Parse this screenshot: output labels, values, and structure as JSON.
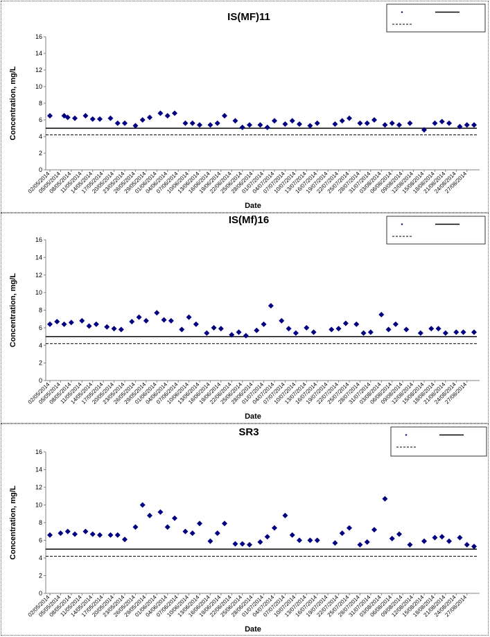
{
  "chart_data": [
    {
      "type": "scatter",
      "title": "IS(MF)11",
      "xlabel": "Date",
      "ylabel": "Concentration, mg/L",
      "ylim": [
        0,
        16
      ],
      "yticks": [
        0,
        2,
        4,
        6,
        8,
        10,
        12,
        14,
        16
      ],
      "x_ticks": [
        "02/05/2014",
        "05/05/2014",
        "08/05/2014",
        "11/05/2014",
        "14/05/2014",
        "17/05/2014",
        "20/05/2014",
        "23/05/2014",
        "26/05/2014",
        "29/05/2014",
        "01/06/2014",
        "04/06/2014",
        "07/06/2014",
        "10/06/2014",
        "13/06/2014",
        "16/06/2014",
        "19/06/2014",
        "22/06/2014",
        "25/06/2014",
        "28/06/2014",
        "01/07/2014",
        "04/07/2014",
        "07/07/2014",
        "10/07/2014",
        "13/07/2014",
        "16/07/2014",
        "19/07/2014",
        "22/07/2014",
        "25/07/2014",
        "28/07/2014",
        "31/07/2014",
        "03/08/2014",
        "06/08/2014",
        "09/08/2014",
        "12/08/2014",
        "15/08/2014",
        "18/08/2014",
        "21/08/2014",
        "24/08/2014",
        "27/08/2014"
      ],
      "x_tick_days": [
        0,
        3,
        6,
        9,
        12,
        15,
        18,
        21,
        24,
        27,
        30,
        33,
        36,
        39,
        42,
        45,
        48,
        51,
        54,
        57,
        60,
        63,
        66,
        69,
        72,
        75,
        78,
        81,
        84,
        87,
        90,
        93,
        96,
        99,
        102,
        105,
        108,
        111,
        114,
        117
      ],
      "x_range_days": [
        0,
        119
      ],
      "legend_position": "top-right",
      "reference_lines": [
        {
          "style": "solid",
          "value": 5.0
        },
        {
          "style": "dashed",
          "value": 4.2
        }
      ],
      "points": [
        {
          "day": 0,
          "y": 6.5
        },
        {
          "day": 4,
          "y": 6.5
        },
        {
          "day": 5,
          "y": 6.3
        },
        {
          "day": 7,
          "y": 6.2
        },
        {
          "day": 10,
          "y": 6.5
        },
        {
          "day": 12,
          "y": 6.1
        },
        {
          "day": 14,
          "y": 6.1
        },
        {
          "day": 17,
          "y": 6.2
        },
        {
          "day": 19,
          "y": 5.6
        },
        {
          "day": 21,
          "y": 5.6
        },
        {
          "day": 24,
          "y": 5.3
        },
        {
          "day": 26,
          "y": 6.0
        },
        {
          "day": 28,
          "y": 6.3
        },
        {
          "day": 31,
          "y": 6.8
        },
        {
          "day": 33,
          "y": 6.5
        },
        {
          "day": 35,
          "y": 6.8
        },
        {
          "day": 38,
          "y": 5.6
        },
        {
          "day": 40,
          "y": 5.6
        },
        {
          "day": 42,
          "y": 5.4
        },
        {
          "day": 45,
          "y": 5.4
        },
        {
          "day": 47,
          "y": 5.6
        },
        {
          "day": 49,
          "y": 6.5
        },
        {
          "day": 52,
          "y": 5.9
        },
        {
          "day": 54,
          "y": 5.1
        },
        {
          "day": 56,
          "y": 5.4
        },
        {
          "day": 59,
          "y": 5.4
        },
        {
          "day": 61,
          "y": 5.1
        },
        {
          "day": 63,
          "y": 5.9
        },
        {
          "day": 66,
          "y": 5.5
        },
        {
          "day": 68,
          "y": 5.9
        },
        {
          "day": 70,
          "y": 5.5
        },
        {
          "day": 73,
          "y": 5.3
        },
        {
          "day": 75,
          "y": 5.6
        },
        {
          "day": 80,
          "y": 5.5
        },
        {
          "day": 82,
          "y": 5.9
        },
        {
          "day": 84,
          "y": 6.2
        },
        {
          "day": 87,
          "y": 5.6
        },
        {
          "day": 89,
          "y": 5.6
        },
        {
          "day": 91,
          "y": 6.0
        },
        {
          "day": 94,
          "y": 5.4
        },
        {
          "day": 96,
          "y": 5.6
        },
        {
          "day": 98,
          "y": 5.4
        },
        {
          "day": 101,
          "y": 5.6
        },
        {
          "day": 105,
          "y": 4.8
        },
        {
          "day": 108,
          "y": 5.6
        },
        {
          "day": 110,
          "y": 5.8
        },
        {
          "day": 112,
          "y": 5.6
        },
        {
          "day": 115,
          "y": 5.2
        },
        {
          "day": 117,
          "y": 5.4
        },
        {
          "day": 119,
          "y": 5.4
        }
      ]
    },
    {
      "type": "scatter",
      "title": "IS(Mf)16",
      "xlabel": "Date",
      "ylabel": "Concentration, mg/L",
      "ylim": [
        0,
        16
      ],
      "yticks": [
        0,
        2,
        4,
        6,
        8,
        10,
        12,
        14,
        16
      ],
      "x_ticks": [
        "02/05/2014",
        "05/05/2014",
        "08/05/2014",
        "11/05/2014",
        "14/05/2014",
        "17/05/2014",
        "20/05/2014",
        "23/05/2014",
        "26/05/2014",
        "29/05/2014",
        "01/06/2014",
        "04/06/2014",
        "07/06/2014",
        "10/06/2014",
        "13/06/2014",
        "16/06/2014",
        "19/06/2014",
        "22/06/2014",
        "25/06/2014",
        "28/06/2014",
        "01/07/2014",
        "04/07/2014",
        "07/07/2014",
        "10/07/2014",
        "13/07/2014",
        "16/07/2014",
        "19/07/2014",
        "22/07/2014",
        "25/07/2014",
        "28/07/2014",
        "31/07/2014",
        "03/08/2014",
        "06/08/2014",
        "09/08/2014",
        "12/08/2014",
        "15/08/2014",
        "18/08/2014",
        "21/08/2014",
        "24/08/2014",
        "27/08/2014"
      ],
      "x_tick_days": [
        0,
        3,
        6,
        9,
        12,
        15,
        18,
        21,
        24,
        27,
        30,
        33,
        36,
        39,
        42,
        45,
        48,
        51,
        54,
        57,
        60,
        63,
        66,
        69,
        72,
        75,
        78,
        81,
        84,
        87,
        90,
        93,
        96,
        99,
        102,
        105,
        108,
        111,
        114,
        117
      ],
      "x_range_days": [
        0,
        119
      ],
      "legend_position": "top-right",
      "reference_lines": [
        {
          "style": "solid",
          "value": 5.0
        },
        {
          "style": "dashed",
          "value": 4.2
        }
      ],
      "points": [
        {
          "day": 0,
          "y": 6.4
        },
        {
          "day": 2,
          "y": 6.7
        },
        {
          "day": 4,
          "y": 6.4
        },
        {
          "day": 6,
          "y": 6.6
        },
        {
          "day": 9,
          "y": 6.8
        },
        {
          "day": 11,
          "y": 6.2
        },
        {
          "day": 13,
          "y": 6.4
        },
        {
          "day": 16,
          "y": 6.1
        },
        {
          "day": 18,
          "y": 5.9
        },
        {
          "day": 20,
          "y": 5.8
        },
        {
          "day": 23,
          "y": 6.7
        },
        {
          "day": 25,
          "y": 7.2
        },
        {
          "day": 27,
          "y": 6.8
        },
        {
          "day": 30,
          "y": 7.7
        },
        {
          "day": 32,
          "y": 6.9
        },
        {
          "day": 34,
          "y": 6.8
        },
        {
          "day": 37,
          "y": 5.8
        },
        {
          "day": 39,
          "y": 7.2
        },
        {
          "day": 41,
          "y": 6.4
        },
        {
          "day": 44,
          "y": 5.4
        },
        {
          "day": 46,
          "y": 6.0
        },
        {
          "day": 48,
          "y": 5.9
        },
        {
          "day": 51,
          "y": 5.2
        },
        {
          "day": 53,
          "y": 5.5
        },
        {
          "day": 55,
          "y": 5.1
        },
        {
          "day": 58,
          "y": 5.7
        },
        {
          "day": 60,
          "y": 6.4
        },
        {
          "day": 62,
          "y": 8.5
        },
        {
          "day": 65,
          "y": 6.8
        },
        {
          "day": 67,
          "y": 5.9
        },
        {
          "day": 69,
          "y": 5.4
        },
        {
          "day": 72,
          "y": 6.0
        },
        {
          "day": 74,
          "y": 5.5
        },
        {
          "day": 79,
          "y": 5.8
        },
        {
          "day": 81,
          "y": 5.9
        },
        {
          "day": 83,
          "y": 6.5
        },
        {
          "day": 86,
          "y": 6.4
        },
        {
          "day": 88,
          "y": 5.4
        },
        {
          "day": 90,
          "y": 5.5
        },
        {
          "day": 93,
          "y": 7.5
        },
        {
          "day": 95,
          "y": 5.8
        },
        {
          "day": 97,
          "y": 6.4
        },
        {
          "day": 100,
          "y": 5.8
        },
        {
          "day": 104,
          "y": 5.4
        },
        {
          "day": 107,
          "y": 5.9
        },
        {
          "day": 109,
          "y": 5.9
        },
        {
          "day": 111,
          "y": 5.4
        },
        {
          "day": 114,
          "y": 5.5
        },
        {
          "day": 116,
          "y": 5.5
        },
        {
          "day": 119,
          "y": 5.5
        }
      ]
    },
    {
      "type": "scatter",
      "title": "SR3",
      "xlabel": "Date",
      "ylabel": "Concentration, mg/L",
      "ylim": [
        0,
        16
      ],
      "yticks": [
        0,
        2,
        4,
        6,
        8,
        10,
        12,
        14,
        16
      ],
      "x_ticks": [
        "02/05/2014",
        "05/05/2014",
        "08/05/2014",
        "11/05/2014",
        "14/05/2014",
        "17/05/2014",
        "20/05/2014",
        "23/05/2014",
        "26/05/2014",
        "29/05/2014",
        "01/06/2014",
        "04/06/2014",
        "07/06/2014",
        "10/06/2014",
        "13/06/2014",
        "16/06/2014",
        "19/06/2014",
        "22/06/2014",
        "25/06/2014",
        "28/06/2014",
        "01/07/2014",
        "04/07/2014",
        "07/07/2014",
        "10/07/2014",
        "13/07/2014",
        "16/07/2014",
        "19/07/2014",
        "22/07/2014",
        "25/07/2014",
        "28/07/2014",
        "31/07/2014",
        "03/08/2014",
        "06/08/2014",
        "09/08/2014",
        "12/08/2014",
        "15/08/2014",
        "18/08/2014",
        "21/08/2014",
        "24/08/2014",
        "27/08/2014"
      ],
      "x_tick_days": [
        0,
        3,
        6,
        9,
        12,
        15,
        18,
        21,
        24,
        27,
        30,
        33,
        36,
        39,
        42,
        45,
        48,
        51,
        54,
        57,
        60,
        63,
        66,
        69,
        72,
        75,
        78,
        81,
        84,
        87,
        90,
        93,
        96,
        99,
        102,
        105,
        108,
        111,
        114,
        117
      ],
      "x_range_days": [
        0,
        119
      ],
      "legend_position": "top-right",
      "reference_lines": [
        {
          "style": "solid",
          "value": 5.0
        },
        {
          "style": "dashed",
          "value": 4.2
        }
      ],
      "points": [
        {
          "day": 0,
          "y": 6.6
        },
        {
          "day": 3,
          "y": 6.8
        },
        {
          "day": 5,
          "y": 7.0
        },
        {
          "day": 7,
          "y": 6.7
        },
        {
          "day": 10,
          "y": 7.0
        },
        {
          "day": 12,
          "y": 6.7
        },
        {
          "day": 14,
          "y": 6.6
        },
        {
          "day": 17,
          "y": 6.6
        },
        {
          "day": 19,
          "y": 6.6
        },
        {
          "day": 21,
          "y": 6.1
        },
        {
          "day": 24,
          "y": 7.5
        },
        {
          "day": 26,
          "y": 10.0
        },
        {
          "day": 28,
          "y": 8.8
        },
        {
          "day": 31,
          "y": 9.2
        },
        {
          "day": 33,
          "y": 7.5
        },
        {
          "day": 35,
          "y": 8.5
        },
        {
          "day": 38,
          "y": 7.0
        },
        {
          "day": 40,
          "y": 6.8
        },
        {
          "day": 42,
          "y": 7.9
        },
        {
          "day": 45,
          "y": 5.9
        },
        {
          "day": 47,
          "y": 6.8
        },
        {
          "day": 49,
          "y": 7.9
        },
        {
          "day": 52,
          "y": 5.6
        },
        {
          "day": 54,
          "y": 5.6
        },
        {
          "day": 56,
          "y": 5.5
        },
        {
          "day": 59,
          "y": 5.8
        },
        {
          "day": 61,
          "y": 6.4
        },
        {
          "day": 63,
          "y": 7.4
        },
        {
          "day": 66,
          "y": 8.8
        },
        {
          "day": 68,
          "y": 6.6
        },
        {
          "day": 70,
          "y": 6.0
        },
        {
          "day": 73,
          "y": 6.0
        },
        {
          "day": 75,
          "y": 6.0
        },
        {
          "day": 80,
          "y": 5.7
        },
        {
          "day": 82,
          "y": 6.8
        },
        {
          "day": 84,
          "y": 7.4
        },
        {
          "day": 87,
          "y": 5.5
        },
        {
          "day": 89,
          "y": 5.8
        },
        {
          "day": 91,
          "y": 7.2
        },
        {
          "day": 94,
          "y": 10.7
        },
        {
          "day": 96,
          "y": 6.2
        },
        {
          "day": 98,
          "y": 6.7
        },
        {
          "day": 101,
          "y": 5.5
        },
        {
          "day": 105,
          "y": 5.9
        },
        {
          "day": 108,
          "y": 6.3
        },
        {
          "day": 110,
          "y": 6.4
        },
        {
          "day": 112,
          "y": 5.9
        },
        {
          "day": 115,
          "y": 6.3
        },
        {
          "day": 117,
          "y": 5.5
        },
        {
          "day": 119,
          "y": 5.3
        }
      ]
    }
  ],
  "colors": {
    "marker": "#000080",
    "line": "#000000",
    "border": "#555555"
  },
  "marker_shape": "diamond"
}
